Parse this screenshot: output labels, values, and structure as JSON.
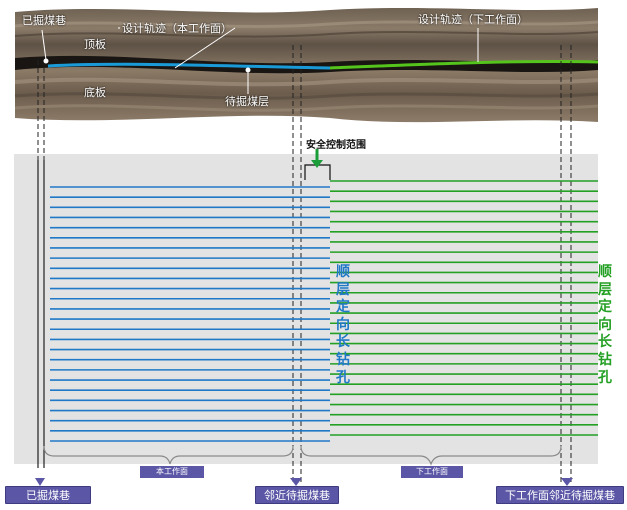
{
  "labels": {
    "mined_roadway_top": "已掘煤巷",
    "roof": "顶板",
    "floor": "底板",
    "design_track_current": "设计轨迹（本工作面）",
    "design_track_next": "设计轨迹（下工作面）",
    "seam_to_mine": "待掘煤层",
    "safety_range": "安全控制范围",
    "drill_text_blue": "顺\n层\n定\n向\n长\n钻\n孔",
    "drill_text_green": "顺\n层\n定\n向\n长\n钻\n孔",
    "current_face": "本工作面",
    "next_face": "下工作面",
    "bottom_mined_roadway": "已掘煤巷",
    "bottom_adjacent_roadway": "邻近待掘煤巷",
    "bottom_next_adjacent_roadway": "下工作面邻近待掘煤巷"
  },
  "colors": {
    "blue_track": "#1a9bd8",
    "green_track": "#55c41c",
    "blue_boreholes": "#2079c7",
    "green_boreholes": "#24a024",
    "label_box": "#5b57a6",
    "background_panel": "#e3e3e3"
  },
  "boreholes": {
    "blue_count": 26,
    "green_count": 26
  }
}
